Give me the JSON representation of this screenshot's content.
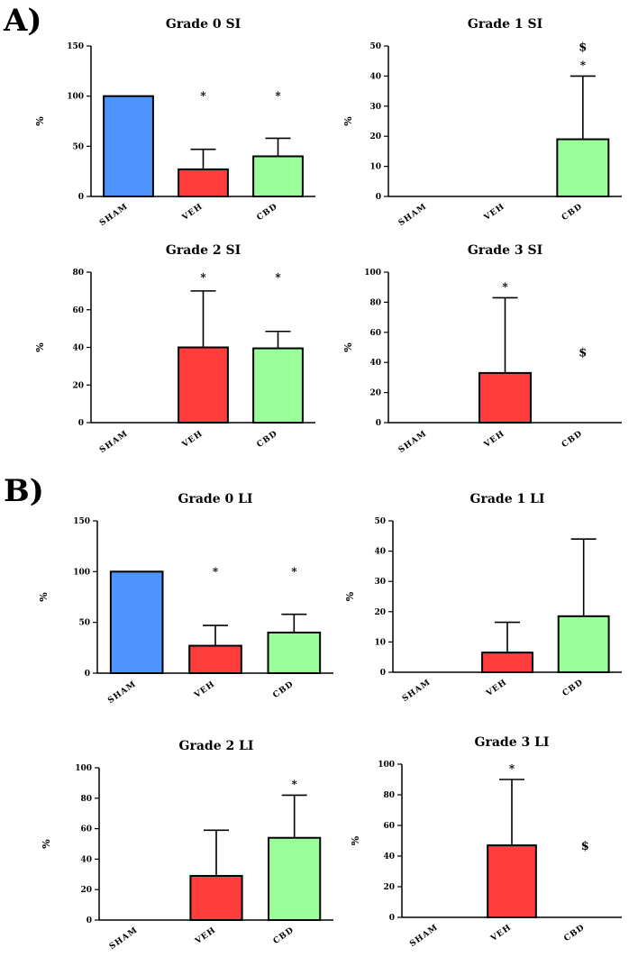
{
  "panel_labels": {
    "a": "A)",
    "b": "B)"
  },
  "colors": {
    "SHAM": "#4d94ff",
    "VEH": "#ff3d3d",
    "CBD": "#99ff99"
  },
  "chart_data": [
    {
      "type": "bar",
      "title": "Grade 0 SI",
      "ylabel": "%",
      "ylim": [
        0,
        150
      ],
      "yticks": [
        0,
        50,
        100,
        150
      ],
      "categories": [
        "SHAM",
        "VEH",
        "CBD"
      ],
      "values": [
        100,
        27,
        40
      ],
      "errors": [
        0,
        20,
        18
      ],
      "annotations": [
        [],
        [
          "*"
        ],
        [
          "*"
        ]
      ]
    },
    {
      "type": "bar",
      "title": "Grade 1 SI",
      "ylabel": "%",
      "ylim": [
        0,
        50
      ],
      "yticks": [
        0,
        10,
        20,
        30,
        40,
        50
      ],
      "categories": [
        "SHAM",
        "VEH",
        "CBD"
      ],
      "values": [
        0,
        0,
        19
      ],
      "errors": [
        0,
        0,
        21
      ],
      "annotations": [
        [],
        [],
        [
          "*",
          "$"
        ]
      ]
    },
    {
      "type": "bar",
      "title": "Grade 2 SI",
      "ylabel": "%",
      "ylim": [
        0,
        80
      ],
      "yticks": [
        0,
        20,
        40,
        60,
        80
      ],
      "categories": [
        "SHAM",
        "VEH",
        "CBD"
      ],
      "values": [
        0,
        40,
        39.5
      ],
      "errors": [
        0,
        30,
        9
      ],
      "annotations": [
        [],
        [
          "*"
        ],
        [
          "*"
        ]
      ]
    },
    {
      "type": "bar",
      "title": "Grade 3 SI",
      "ylabel": "%",
      "ylim": [
        0,
        100
      ],
      "yticks": [
        0,
        20,
        40,
        60,
        80,
        100
      ],
      "categories": [
        "SHAM",
        "VEH",
        "CBD"
      ],
      "values": [
        0,
        33,
        0
      ],
      "errors": [
        0,
        50,
        0
      ],
      "annotations": [
        [],
        [
          "*"
        ],
        [
          "$"
        ]
      ]
    },
    {
      "type": "bar",
      "title": "Grade 0 LI",
      "ylabel": "%",
      "ylim": [
        0,
        150
      ],
      "yticks": [
        0,
        50,
        100,
        150
      ],
      "categories": [
        "SHAM",
        "VEH",
        "CBD"
      ],
      "values": [
        100,
        27,
        40
      ],
      "errors": [
        0,
        20,
        18
      ],
      "annotations": [
        [],
        [
          "*"
        ],
        [
          "*"
        ]
      ]
    },
    {
      "type": "bar",
      "title": "Grade 1 LI",
      "ylabel": "%",
      "ylim": [
        0,
        50
      ],
      "yticks": [
        0,
        10,
        20,
        30,
        40,
        50
      ],
      "categories": [
        "SHAM",
        "VEH",
        "CBD"
      ],
      "values": [
        0,
        6.5,
        18.5
      ],
      "errors": [
        0,
        10,
        25.5
      ],
      "annotations": [
        [],
        [],
        []
      ]
    },
    {
      "type": "bar",
      "title": "Grade 2 LI",
      "ylabel": "%",
      "ylim": [
        0,
        100
      ],
      "yticks": [
        0,
        20,
        40,
        60,
        80,
        100
      ],
      "categories": [
        "SHAM",
        "VEH",
        "CBD"
      ],
      "values": [
        0,
        29,
        54
      ],
      "errors": [
        0,
        30,
        28
      ],
      "annotations": [
        [],
        [],
        [
          "*"
        ]
      ]
    },
    {
      "type": "bar",
      "title": "Grade 3 LI",
      "ylabel": "%",
      "ylim": [
        0,
        100
      ],
      "yticks": [
        0,
        20,
        40,
        60,
        80,
        100
      ],
      "categories": [
        "SHAM",
        "VEH",
        "CBD"
      ],
      "values": [
        0,
        47,
        0
      ],
      "errors": [
        0,
        43,
        0
      ],
      "annotations": [
        [],
        [
          "*"
        ],
        [
          "$"
        ]
      ]
    }
  ]
}
